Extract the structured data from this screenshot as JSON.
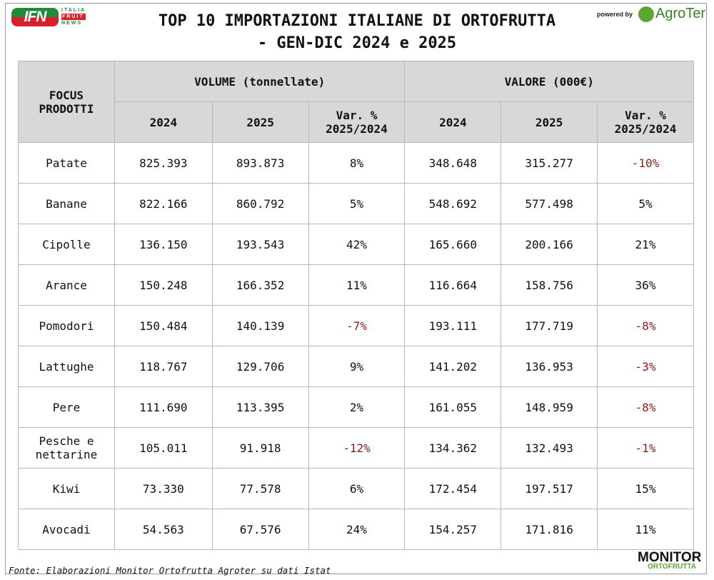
{
  "header": {
    "title_line1": "TOP 10 IMPORTAZIONI ITALIANE DI ORTOFRUTTA",
    "title_line2": "- GEN-DIC 2024 e 2025",
    "ifn_logo": "IFN",
    "ifn_lines": [
      "ITALIA",
      "FRUIT",
      "NEWS"
    ],
    "powered_by": "powered by",
    "agroter": "AgroTer"
  },
  "table": {
    "col_product": "FOCUS PRODOTTI",
    "group_volume": "VOLUME (tonnellate)",
    "group_value": "VALORE (000€)",
    "sub": [
      "2024",
      "2025",
      "Var. % 2025/2024",
      "2024",
      "2025",
      "Var. % 2025/2024"
    ],
    "rows": [
      {
        "p": "Patate",
        "v24": "825.393",
        "v25": "893.873",
        "vv": "8%",
        "e24": "348.648",
        "e25": "315.277",
        "ev": "-10%"
      },
      {
        "p": "Banane",
        "v24": "822.166",
        "v25": "860.792",
        "vv": "5%",
        "e24": "548.692",
        "e25": "577.498",
        "ev": "5%"
      },
      {
        "p": "Cipolle",
        "v24": "136.150",
        "v25": "193.543",
        "vv": "42%",
        "e24": "165.660",
        "e25": "200.166",
        "ev": "21%"
      },
      {
        "p": "Arance",
        "v24": "150.248",
        "v25": "166.352",
        "vv": "11%",
        "e24": "116.664",
        "e25": "158.756",
        "ev": "36%"
      },
      {
        "p": "Pomodori",
        "v24": "150.484",
        "v25": "140.139",
        "vv": "-7%",
        "e24": "193.111",
        "e25": "177.719",
        "ev": "-8%"
      },
      {
        "p": "Lattughe",
        "v24": "118.767",
        "v25": "129.706",
        "vv": "9%",
        "e24": "141.202",
        "e25": "136.953",
        "ev": "-3%"
      },
      {
        "p": "Pere",
        "v24": "111.690",
        "v25": "113.395",
        "vv": "2%",
        "e24": "161.055",
        "e25": "148.959",
        "ev": "-8%"
      },
      {
        "p": "Pesche e nettarine",
        "v24": "105.011",
        "v25": "91.918",
        "vv": "-12%",
        "e24": "134.362",
        "e25": "132.493",
        "ev": "-1%"
      },
      {
        "p": "Kiwi",
        "v24": "73.330",
        "v25": "77.578",
        "vv": "6%",
        "e24": "172.454",
        "e25": "197.517",
        "ev": "15%"
      },
      {
        "p": "Avocadi",
        "v24": "54.563",
        "v25": "67.576",
        "vv": "24%",
        "e24": "154.257",
        "e25": "171.816",
        "ev": "11%"
      }
    ]
  },
  "footer": {
    "source": "Fonte: Elaborazioni Monitor Ortofrutta Agroter su dati Istat",
    "monitor": "MONITOR",
    "monitor_sub": "ORTOFRUTTA"
  },
  "colors": {
    "negative": "#8b1a1a",
    "header_bg": "#d8d8d8"
  }
}
